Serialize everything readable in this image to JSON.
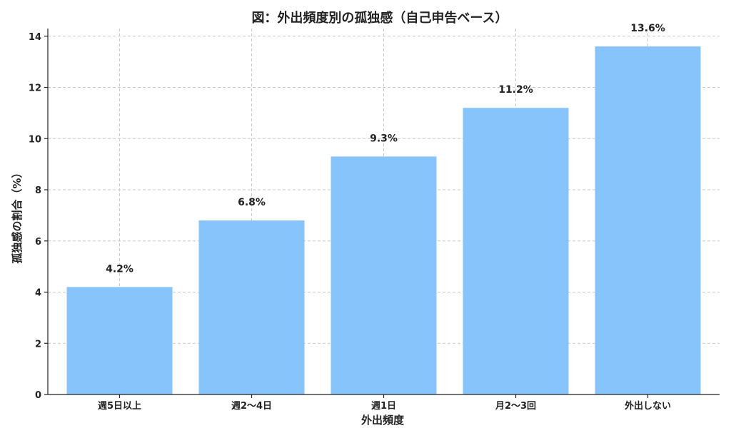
{
  "chart_data": {
    "type": "bar",
    "title": "図：外出頻度別の孤独感（自己申告ベース）",
    "xlabel": "外出頻度",
    "ylabel": "孤独感の割合（%）",
    "categories": [
      "週5日以上",
      "週2〜4日",
      "週1日",
      "月2〜3回",
      "外出しない"
    ],
    "values": [
      4.2,
      6.8,
      9.3,
      11.2,
      13.6
    ],
    "data_labels": [
      "4.2%",
      "6.8%",
      "9.3%",
      "11.2%",
      "13.6%"
    ],
    "ylim": [
      0,
      14.3
    ],
    "yticks": [
      0,
      2,
      4,
      6,
      8,
      10,
      12,
      14
    ],
    "grid": true,
    "bar_color": "#87C4FC"
  }
}
